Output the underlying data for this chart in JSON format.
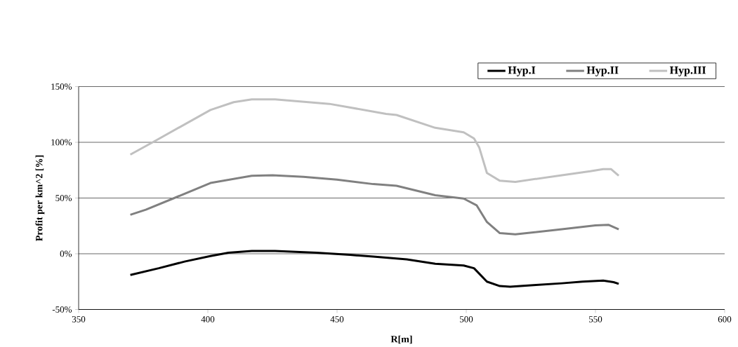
{
  "chart_data": {
    "type": "line",
    "xlabel": "R[m]",
    "ylabel": "Profit per km^2 [%]",
    "xlim": [
      350,
      600
    ],
    "xticks": [
      350,
      400,
      450,
      500,
      550,
      600
    ],
    "ylim": [
      -50,
      150
    ],
    "yticks": [
      {
        "value": -50,
        "label": "-50%"
      },
      {
        "value": 0,
        "label": "0%"
      },
      {
        "value": 50,
        "label": "50%"
      },
      {
        "value": 100,
        "label": "100%"
      },
      {
        "value": 150,
        "label": "150%"
      }
    ],
    "grid": "y",
    "legend": "top right",
    "marker": "none",
    "line_style": "solid",
    "series": [
      {
        "name": "Hyp.I",
        "color": "#000000",
        "x": [
          370,
          381,
          391,
          401,
          408,
          417,
          426,
          442,
          455,
          464,
          477,
          488,
          499,
          503,
          508,
          513,
          517,
          527,
          537,
          545,
          553,
          557,
          559
        ],
        "values": [
          -19,
          -13,
          -7,
          -2,
          1,
          2.5,
          2.5,
          1,
          -1,
          -2.5,
          -5,
          -9,
          -10.5,
          -13,
          -25,
          -29,
          -29.5,
          -28,
          -26.5,
          -25,
          -24,
          -25.5,
          -27
        ]
      },
      {
        "name": "Hyp.II",
        "color": "#808080",
        "x": [
          370,
          376,
          387,
          401,
          417,
          425,
          437,
          450,
          464,
          473,
          488,
          499,
          504,
          508,
          513,
          519,
          537,
          550,
          555,
          559
        ],
        "values": [
          35,
          39.5,
          50,
          63.5,
          70,
          70.5,
          69,
          66.5,
          62.5,
          61,
          52.5,
          49.5,
          43.5,
          28.5,
          18.5,
          17.5,
          22,
          25.5,
          26,
          22
        ]
      },
      {
        "name": "Hyp.III",
        "color": "#c0c0c0",
        "x": [
          370,
          379,
          401,
          410,
          417,
          426,
          447,
          469,
          473,
          488,
          499,
          503,
          505,
          508,
          513,
          519,
          537,
          548,
          553,
          556,
          559
        ],
        "values": [
          89,
          100.5,
          129,
          136,
          138.5,
          138.5,
          134.5,
          125.5,
          124.5,
          113,
          109,
          103.5,
          95.5,
          72.5,
          65.5,
          64.5,
          70.5,
          74,
          76,
          76,
          70
        ]
      }
    ]
  }
}
